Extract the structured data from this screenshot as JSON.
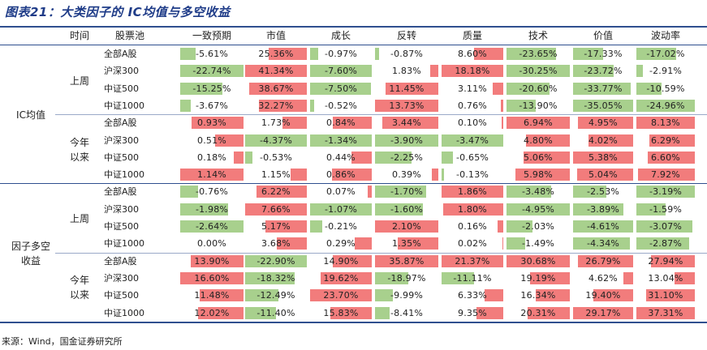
{
  "title": "图表21：大类因子的 IC均值与多空收益",
  "headers": [
    "时间",
    "股票池",
    "一致预期",
    "市值",
    "成长",
    "反转",
    "质量",
    "技术",
    "价值",
    "波动率"
  ],
  "sections": [
    {
      "metric": "IC均值",
      "periods": [
        {
          "period": "上周",
          "rows": [
            {
              "pool": "全部A股",
              "values": [
                "-5.61%",
                "25.36%",
                "-0.97%",
                "-0.87%",
                "8.60%",
                "-23.65%",
                "-17.33%",
                "-17.02%"
              ]
            },
            {
              "pool": "沪深300",
              "values": [
                "-22.74%",
                "41.34%",
                "-7.60%",
                "1.83%",
                "18.18%",
                "-30.25%",
                "-23.72%",
                "-2.91%"
              ]
            },
            {
              "pool": "中证500",
              "values": [
                "-15.25%",
                "38.67%",
                "-7.50%",
                "11.45%",
                "3.11%",
                "-20.60%",
                "-33.77%",
                "-10.59%"
              ]
            },
            {
              "pool": "中证1000",
              "values": [
                "-3.67%",
                "32.27%",
                "-0.52%",
                "13.73%",
                "0.76%",
                "-13.90%",
                "-35.05%",
                "-24.96%"
              ]
            }
          ]
        },
        {
          "period": "今年\n以来",
          "rows": [
            {
              "pool": "全部A股",
              "values": [
                "0.93%",
                "1.73%",
                "0.84%",
                "3.44%",
                "0.10%",
                "6.94%",
                "4.95%",
                "8.13%"
              ]
            },
            {
              "pool": "沪深300",
              "values": [
                "0.51%",
                "-4.37%",
                "-1.34%",
                "-3.90%",
                "-3.47%",
                "4.80%",
                "4.02%",
                "6.29%"
              ]
            },
            {
              "pool": "中证500",
              "values": [
                "0.18%",
                "-0.53%",
                "0.44%",
                "-2.25%",
                "-0.65%",
                "5.06%",
                "5.38%",
                "6.60%"
              ]
            },
            {
              "pool": "中证1000",
              "values": [
                "1.14%",
                "1.15%",
                "0.86%",
                "0.39%",
                "-0.13%",
                "5.98%",
                "5.04%",
                "7.92%"
              ]
            }
          ]
        }
      ]
    },
    {
      "metric": "因子多空\n收益",
      "periods": [
        {
          "period": "上周",
          "rows": [
            {
              "pool": "全部A股",
              "values": [
                "-0.76%",
                "6.22%",
                "0.07%",
                "-1.70%",
                "1.86%",
                "-3.48%",
                "-2.53%",
                "-3.19%"
              ]
            },
            {
              "pool": "沪深300",
              "values": [
                "-1.98%",
                "7.66%",
                "-1.07%",
                "-1.60%",
                "1.80%",
                "-4.95%",
                "-3.89%",
                "-1.59%"
              ]
            },
            {
              "pool": "中证500",
              "values": [
                "-2.64%",
                "5.17%",
                "-0.21%",
                "2.10%",
                "0.16%",
                "-2.03%",
                "-4.61%",
                "-3.07%"
              ]
            },
            {
              "pool": "中证1000",
              "values": [
                "0.00%",
                "3.68%",
                "0.29%",
                "1.35%",
                "0.02%",
                "-1.49%",
                "-4.34%",
                "-2.87%"
              ]
            }
          ]
        },
        {
          "period": "今年\n以来",
          "rows": [
            {
              "pool": "全部A股",
              "values": [
                "13.90%",
                "-22.90%",
                "14.90%",
                "35.87%",
                "21.37%",
                "30.68%",
                "26.79%",
                "27.94%"
              ]
            },
            {
              "pool": "沪深300",
              "values": [
                "16.60%",
                "-18.32%",
                "19.62%",
                "-18.97%",
                "-11.11%",
                "19.19%",
                "4.62%",
                "13.04%"
              ]
            },
            {
              "pool": "中证500",
              "values": [
                "11.48%",
                "-12.49%",
                "23.70%",
                "-9.99%",
                "6.33%",
                "16.34%",
                "19.40%",
                "31.10%"
              ]
            },
            {
              "pool": "中证1000",
              "values": [
                "12.02%",
                "-11.40%",
                "15.83%",
                "-8.41%",
                "9.35%",
                "20.31%",
                "29.17%",
                "37.31%"
              ]
            }
          ]
        }
      ]
    }
  ],
  "source": "来源：Wind，国金证券研究所",
  "colors": {
    "positive_bar": "#f27c7c",
    "negative_bar": "#a8d08d",
    "rule": "#2f4f8f",
    "title": "#1f3c88"
  }
}
